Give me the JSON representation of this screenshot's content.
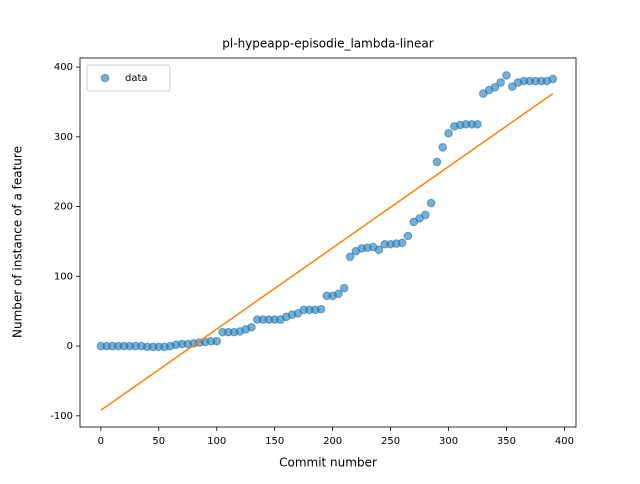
{
  "chart_data": {
    "type": "scatter",
    "title": "pl-hypeapp-episodie_lambda-linear",
    "xlabel": "Commit number",
    "ylabel": "Number of instance of a feature",
    "legend": "upper left",
    "xlim": [
      -18,
      410
    ],
    "ylim": [
      -116,
      413
    ],
    "xticks": [
      0,
      50,
      100,
      150,
      200,
      250,
      300,
      350,
      400
    ],
    "yticks": [
      -100,
      0,
      100,
      200,
      300,
      400
    ],
    "series": [
      {
        "name": "data",
        "color": "#1f77b4",
        "x": [
          0,
          5,
          10,
          15,
          20,
          25,
          30,
          35,
          40,
          45,
          50,
          55,
          60,
          65,
          70,
          75,
          80,
          85,
          90,
          95,
          100,
          105,
          110,
          115,
          120,
          125,
          130,
          135,
          140,
          145,
          150,
          155,
          160,
          165,
          170,
          175,
          180,
          185,
          190,
          195,
          200,
          205,
          210,
          215,
          220,
          225,
          230,
          235,
          240,
          245,
          250,
          255,
          260,
          265,
          270,
          275,
          280,
          285,
          290,
          295,
          300,
          305,
          310,
          315,
          320,
          325,
          330,
          335,
          340,
          345,
          350,
          355,
          360,
          365,
          370,
          375,
          380,
          385,
          390
        ],
        "values": [
          0,
          0,
          0,
          0,
          0,
          0,
          0,
          0,
          -1,
          -1,
          -1,
          -1,
          0,
          2,
          3,
          3,
          4,
          5,
          6,
          7,
          7,
          20,
          20,
          20,
          21,
          24,
          27,
          38,
          38,
          38,
          38,
          38,
          42,
          45,
          47,
          52,
          52,
          52,
          53,
          72,
          72,
          75,
          83,
          128,
          136,
          140,
          141,
          142,
          138,
          146,
          146,
          147,
          148,
          158,
          178,
          183,
          188,
          205,
          264,
          285,
          305,
          315,
          317,
          318,
          318,
          318,
          362,
          367,
          371,
          378,
          388,
          372,
          378,
          380,
          380,
          380,
          380,
          380,
          383
        ]
      },
      {
        "type": "line",
        "color": "#ff7f0e",
        "x": [
          0,
          390
        ],
        "values": [
          -92,
          362
        ]
      }
    ]
  }
}
